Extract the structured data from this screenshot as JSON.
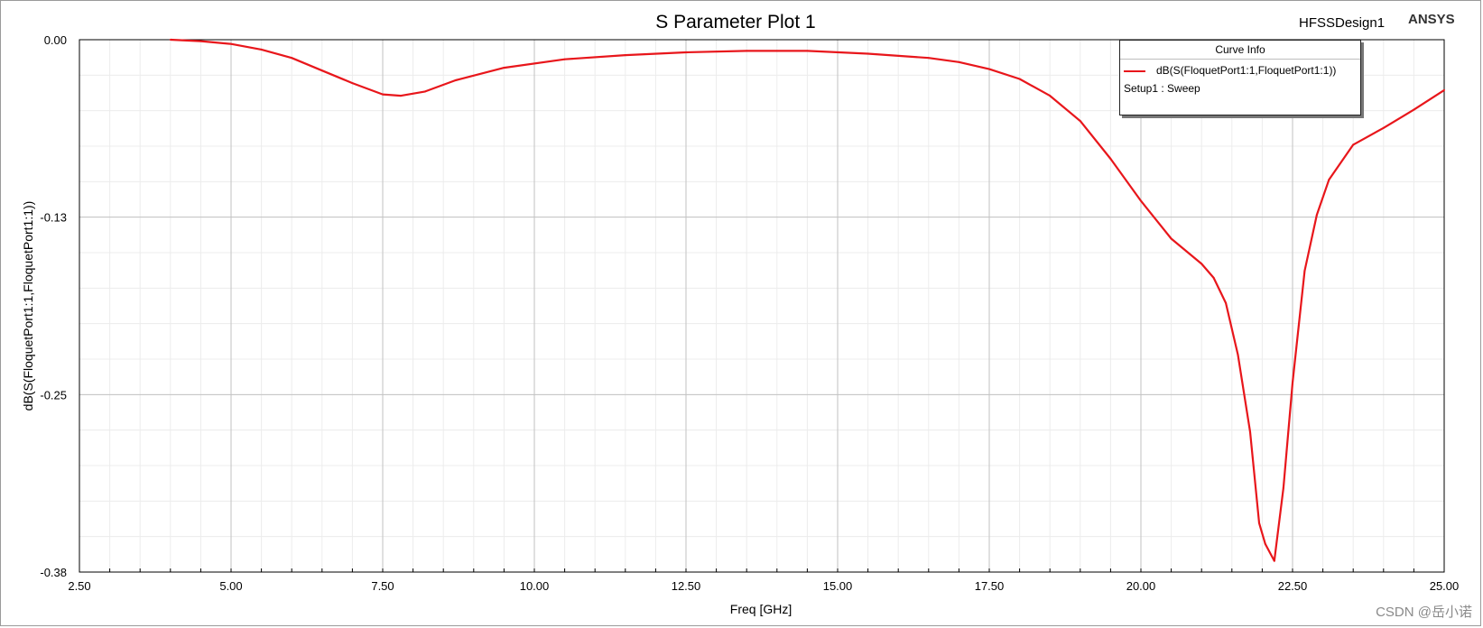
{
  "chart_data": {
    "type": "line",
    "title": "S Parameter Plot 1",
    "design_name": "HFSSDesign1",
    "brand": "ANSYS",
    "xlabel": "Freq [GHz]",
    "ylabel": "dB(S(FloquetPort1:1,FloquetPort1:1))",
    "xlim": [
      2.5,
      25.0
    ],
    "ylim": [
      -0.38,
      0.0
    ],
    "x_ticks": [
      "2.50",
      "5.00",
      "7.50",
      "10.00",
      "12.50",
      "15.00",
      "17.50",
      "20.00",
      "22.50",
      "25.00"
    ],
    "y_ticks": [
      "0.00",
      "-0.13",
      "-0.25",
      "-0.38"
    ],
    "grid": true,
    "legend": {
      "title": "Curve Info",
      "placement": "top-right",
      "entries": [
        {
          "name": "dB(S(FloquetPort1:1,FloquetPort1:1))",
          "setup": "Setup1 : Sweep"
        }
      ]
    },
    "series": [
      {
        "name": "dB(S(FloquetPort1:1,FloquetPort1:1))",
        "color": "#e8161b",
        "x": [
          4.0,
          4.5,
          5.0,
          5.5,
          6.0,
          6.5,
          7.0,
          7.5,
          7.8,
          8.2,
          8.7,
          9.5,
          10.5,
          11.5,
          12.5,
          13.5,
          14.5,
          15.5,
          16.5,
          17.0,
          17.5,
          18.0,
          18.5,
          19.0,
          19.5,
          20.0,
          20.5,
          21.0,
          21.2,
          21.4,
          21.6,
          21.8,
          21.95,
          22.05,
          22.2,
          22.35,
          22.5,
          22.7,
          22.9,
          23.1,
          23.5,
          24.0,
          24.5,
          25.0
        ],
        "y": [
          0.0,
          -0.001,
          -0.003,
          -0.007,
          -0.013,
          -0.022,
          -0.031,
          -0.039,
          -0.04,
          -0.037,
          -0.029,
          -0.02,
          -0.014,
          -0.011,
          -0.009,
          -0.008,
          -0.008,
          -0.01,
          -0.013,
          -0.016,
          -0.021,
          -0.028,
          -0.04,
          -0.058,
          -0.085,
          -0.115,
          -0.142,
          -0.16,
          -0.17,
          -0.188,
          -0.225,
          -0.28,
          -0.345,
          -0.36,
          -0.372,
          -0.32,
          -0.245,
          -0.165,
          -0.125,
          -0.1,
          -0.075,
          -0.063,
          -0.05,
          -0.036
        ]
      }
    ]
  },
  "watermark": "CSDN @岳小诺"
}
